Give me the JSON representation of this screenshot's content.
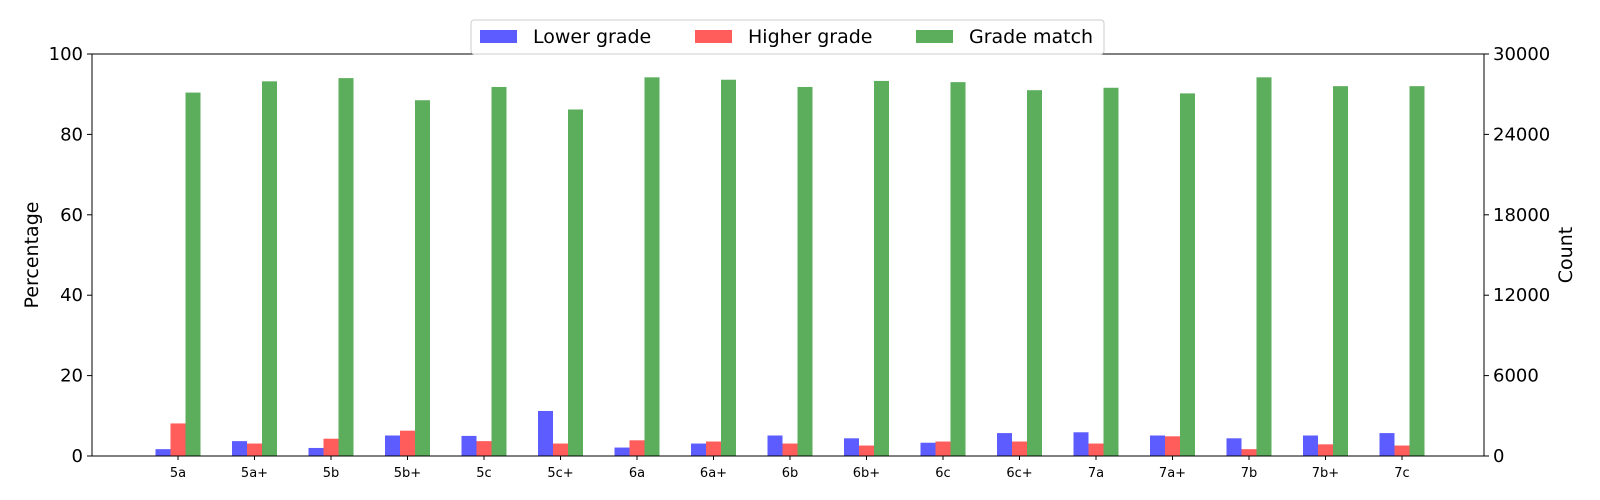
{
  "chart_data": {
    "type": "bar",
    "categories": [
      "5a",
      "5a+",
      "5b",
      "5b+",
      "5c",
      "5c+",
      "6a",
      "6a+",
      "6b",
      "6b+",
      "6c",
      "6c+",
      "7a",
      "7a+",
      "7b",
      "7b+",
      "7c"
    ],
    "series": [
      {
        "name": "Lower grade",
        "color": "#3333ff",
        "values": [
          1.7,
          3.7,
          2.0,
          5.1,
          5.0,
          11.2,
          2.1,
          3.1,
          5.1,
          4.4,
          3.3,
          5.7,
          5.9,
          5.1,
          4.4,
          5.1,
          5.7
        ]
      },
      {
        "name": "Higher grade",
        "color": "#ff3333",
        "values": [
          8.1,
          3.1,
          4.3,
          6.3,
          3.7,
          3.1,
          3.9,
          3.6,
          3.1,
          2.6,
          3.6,
          3.6,
          3.1,
          4.9,
          1.7,
          2.9,
          2.6
        ]
      },
      {
        "name": "Grade match",
        "color": "#339933",
        "values": [
          90.4,
          93.2,
          94.0,
          88.5,
          91.8,
          86.2,
          94.2,
          93.6,
          91.8,
          93.3,
          93.0,
          91.0,
          91.6,
          90.2,
          94.2,
          92.0,
          92.0
        ]
      }
    ],
    "ylabel": "Percentage",
    "y2label": "Count",
    "ylim": [
      0,
      100
    ],
    "yticks": [
      "0",
      "20",
      "40",
      "60",
      "80",
      "100"
    ],
    "y2lim": [
      0,
      30000
    ],
    "y2ticks": [
      "0",
      "6000",
      "12000",
      "18000",
      "24000",
      "30000"
    ],
    "grid": false,
    "legend_position": "top-center"
  }
}
